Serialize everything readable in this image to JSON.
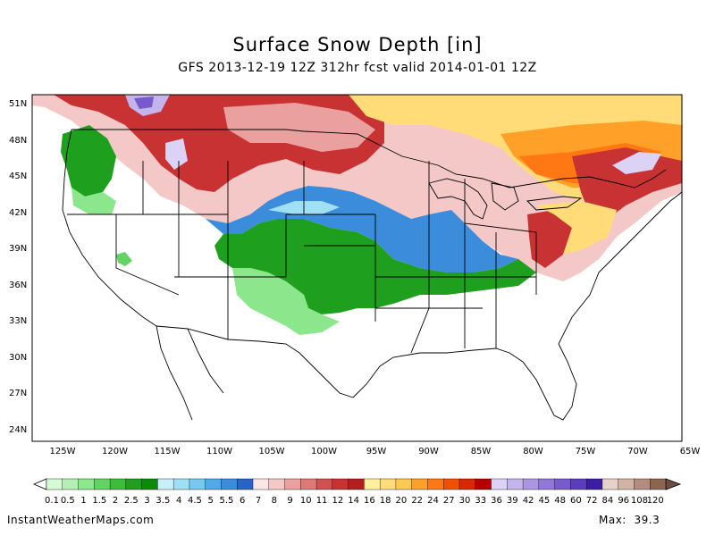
{
  "title": "Surface Snow Depth [in]",
  "subtitle": "GFS 2013-12-19 12Z 312hr fcst valid 2014-01-01 12Z",
  "lat_labels": [
    "51N",
    "48N",
    "45N",
    "42N",
    "39N",
    "36N",
    "33N",
    "30N",
    "27N",
    "24N"
  ],
  "lon_labels": [
    "125W",
    "120W",
    "115W",
    "110W",
    "105W",
    "100W",
    "95W",
    "90W",
    "85W",
    "80W",
    "75W",
    "70W",
    "65W"
  ],
  "colorbar": {
    "labels": [
      "0.1",
      "0.5",
      "1",
      "1.5",
      "2",
      "2.5",
      "3",
      "3.5",
      "4",
      "4.5",
      "5",
      "5.5",
      "6",
      "7",
      "8",
      "9",
      "10",
      "11",
      "12",
      "14",
      "16",
      "18",
      "20",
      "22",
      "24",
      "27",
      "30",
      "33",
      "36",
      "39",
      "42",
      "45",
      "48",
      "60",
      "72",
      "84",
      "96",
      "108",
      "120"
    ],
    "colors": [
      "#d6fad6",
      "#b4f0b4",
      "#8ce68c",
      "#64d264",
      "#3cbe3c",
      "#1ea01e",
      "#0a8c0a",
      "#c8f0fa",
      "#a0e0f5",
      "#78c8f0",
      "#50aae6",
      "#3c8cdc",
      "#2864c8",
      "#fae6e6",
      "#f5c8c8",
      "#eba0a0",
      "#e17878",
      "#d25050",
      "#c83232",
      "#b41e1e",
      "#fff0a0",
      "#ffdc78",
      "#ffc850",
      "#ffa028",
      "#ff7814",
      "#f05000",
      "#d72800",
      "#b40000",
      "#dcd2f5",
      "#c3b4eb",
      "#aa96e1",
      "#9178d7",
      "#785acd",
      "#5a3cbe",
      "#3c1ea5",
      "#e6d2c8",
      "#d2b4a5",
      "#b48c7d",
      "#8c6450"
    ]
  },
  "footer": {
    "site": "InstantWeatherMaps.com",
    "max_label": "Max:",
    "max_value": "39.3"
  },
  "legend_colors": {
    "green": "#1ea01e",
    "light_green": "#8ce68c",
    "blue": "#3c8cdc",
    "light_blue": "#a0e0f5",
    "pink": "#f5c8c8",
    "red": "#c83232",
    "dark_red": "#a01e1e",
    "yellow": "#ffdc78",
    "orange": "#ffa028",
    "dark_orange": "#ff7814",
    "lavender": "#c3b4eb",
    "purple": "#785acd"
  }
}
